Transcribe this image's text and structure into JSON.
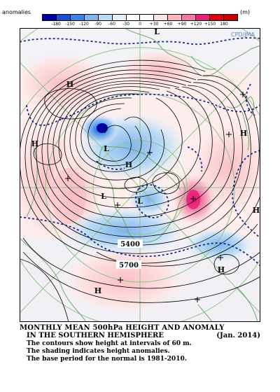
{
  "legend": {
    "title": "anomalies",
    "unit": "(m)",
    "ticks": [
      "-180",
      "-150",
      "-120",
      "-90",
      "-60",
      "-30",
      "0",
      "+30",
      "+60",
      "+90",
      "+120",
      "+150",
      "180"
    ],
    "colors": [
      "#0000a0",
      "#1e4ed2",
      "#3d82e6",
      "#7fb4ee",
      "#bcdcf5",
      "#e4f0fa",
      "#ffffff",
      "#ffffff",
      "#fde3e3",
      "#f9b6bd",
      "#f07aa4",
      "#e8207a",
      "#e00010",
      "#c80000"
    ]
  },
  "map": {
    "credit": "CPD/JMA",
    "contour_labels": [
      "5400",
      "5700"
    ],
    "pressure_centers": [
      {
        "label": "H",
        "name": "high-center-west-ocean"
      },
      {
        "label": "H",
        "name": "high-center-far-west"
      },
      {
        "label": "H",
        "name": "high-center-east"
      },
      {
        "label": "H",
        "name": "high-center-south-pacific"
      },
      {
        "label": "H",
        "name": "high-center-southeast"
      },
      {
        "label": "H",
        "name": "high-center-right-edge"
      },
      {
        "label": "H",
        "name": "high-center-pole"
      },
      {
        "label": "L",
        "name": "low-center-main"
      },
      {
        "label": "L",
        "name": "low-center-west"
      },
      {
        "label": "L",
        "name": "low-center-pole"
      },
      {
        "label": "L",
        "name": "low-center-top"
      }
    ]
  },
  "caption": {
    "title": "MONTHLY MEAN 500hPa HEIGHT AND ANOMALY",
    "subtitle": "IN THE SOUTHERN HEMISPHERE",
    "date": "(Jan. 2014)",
    "note1": "The contours show height at intervals of 60 m.",
    "note2": "The shading indicates height anomalies.",
    "note3": "The base period for the normal is 1981-2010."
  }
}
